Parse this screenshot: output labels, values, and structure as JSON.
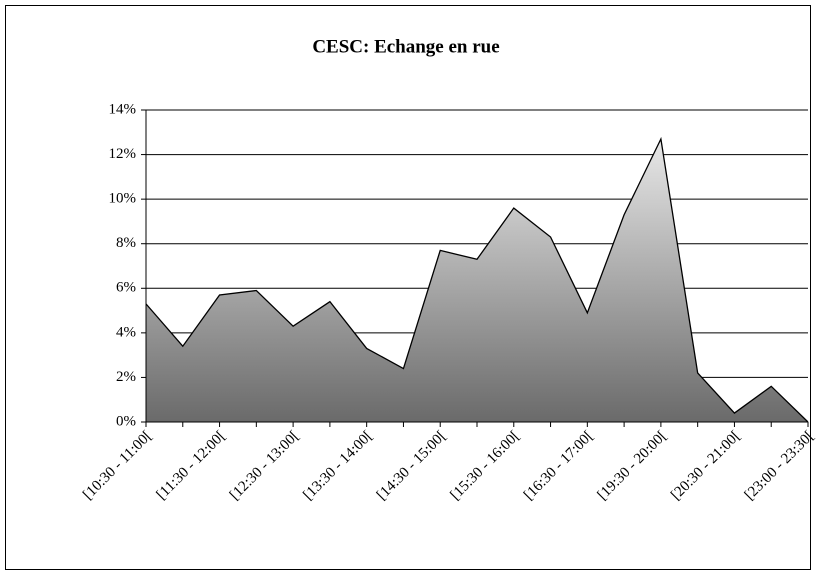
{
  "chart_data": {
    "type": "area",
    "title": "CESC: Echange en rue",
    "categories": [
      "[10:30 - 11:00[",
      null,
      "[11:30 - 12:00[",
      null,
      "[12:30 - 13:00[",
      null,
      "[13:30 - 14:00[",
      null,
      "[14:30 - 15:00[",
      null,
      "[15:30 - 16:00[",
      null,
      "[16:30 - 17:00[",
      null,
      "[19:30 - 20:00[",
      null,
      "[20:30 - 21:00[",
      null,
      "[23:00 - 23:30["
    ],
    "values": [
      5.3,
      3.4,
      5.7,
      5.9,
      4.3,
      5.4,
      3.3,
      2.4,
      7.7,
      7.3,
      9.6,
      8.3,
      4.9,
      9.3,
      12.7,
      2.2,
      0.4,
      1.6,
      0.0
    ],
    "ylim": [
      0,
      14
    ],
    "yticks": [
      {
        "value": 0,
        "label": "0%"
      },
      {
        "value": 2,
        "label": "2%"
      },
      {
        "value": 4,
        "label": "4%"
      },
      {
        "value": 6,
        "label": "6%"
      },
      {
        "value": 8,
        "label": "8%"
      },
      {
        "value": 10,
        "label": "10%"
      },
      {
        "value": 12,
        "label": "12%"
      },
      {
        "value": 14,
        "label": "14%"
      }
    ],
    "grid": true
  }
}
